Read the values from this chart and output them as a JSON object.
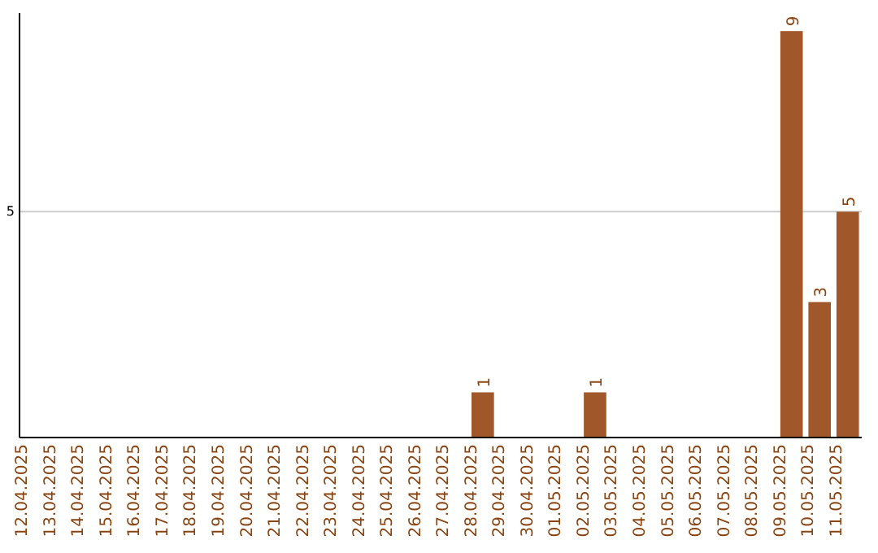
{
  "chart_data": {
    "type": "bar",
    "categories": [
      "12.04.2025",
      "13.04.2025",
      "14.04.2025",
      "15.04.2025",
      "16.04.2025",
      "17.04.2025",
      "18.04.2025",
      "19.04.2025",
      "20.04.2025",
      "21.04.2025",
      "22.04.2025",
      "23.04.2025",
      "24.04.2025",
      "25.04.2025",
      "26.04.2025",
      "27.04.2025",
      "28.04.2025",
      "29.04.2025",
      "30.04.2025",
      "01.05.2025",
      "02.05.2025",
      "03.05.2025",
      "04.05.2025",
      "05.05.2025",
      "06.05.2025",
      "07.05.2025",
      "08.05.2025",
      "09.05.2025",
      "10.05.2025",
      "11.05.2025"
    ],
    "values": [
      null,
      null,
      null,
      null,
      null,
      null,
      null,
      null,
      null,
      null,
      null,
      null,
      null,
      null,
      null,
      null,
      1,
      null,
      null,
      null,
      1,
      null,
      null,
      null,
      null,
      null,
      null,
      9,
      3,
      5
    ],
    "value_labels": [
      null,
      null,
      null,
      null,
      null,
      null,
      null,
      null,
      null,
      null,
      null,
      null,
      null,
      null,
      null,
      null,
      "1",
      null,
      null,
      null,
      "1",
      null,
      null,
      null,
      null,
      null,
      null,
      "9",
      "3",
      "5"
    ],
    "color": "#a0572a",
    "ylim": [
      0,
      9.4
    ],
    "yticks": [
      5
    ],
    "grid": "y"
  }
}
